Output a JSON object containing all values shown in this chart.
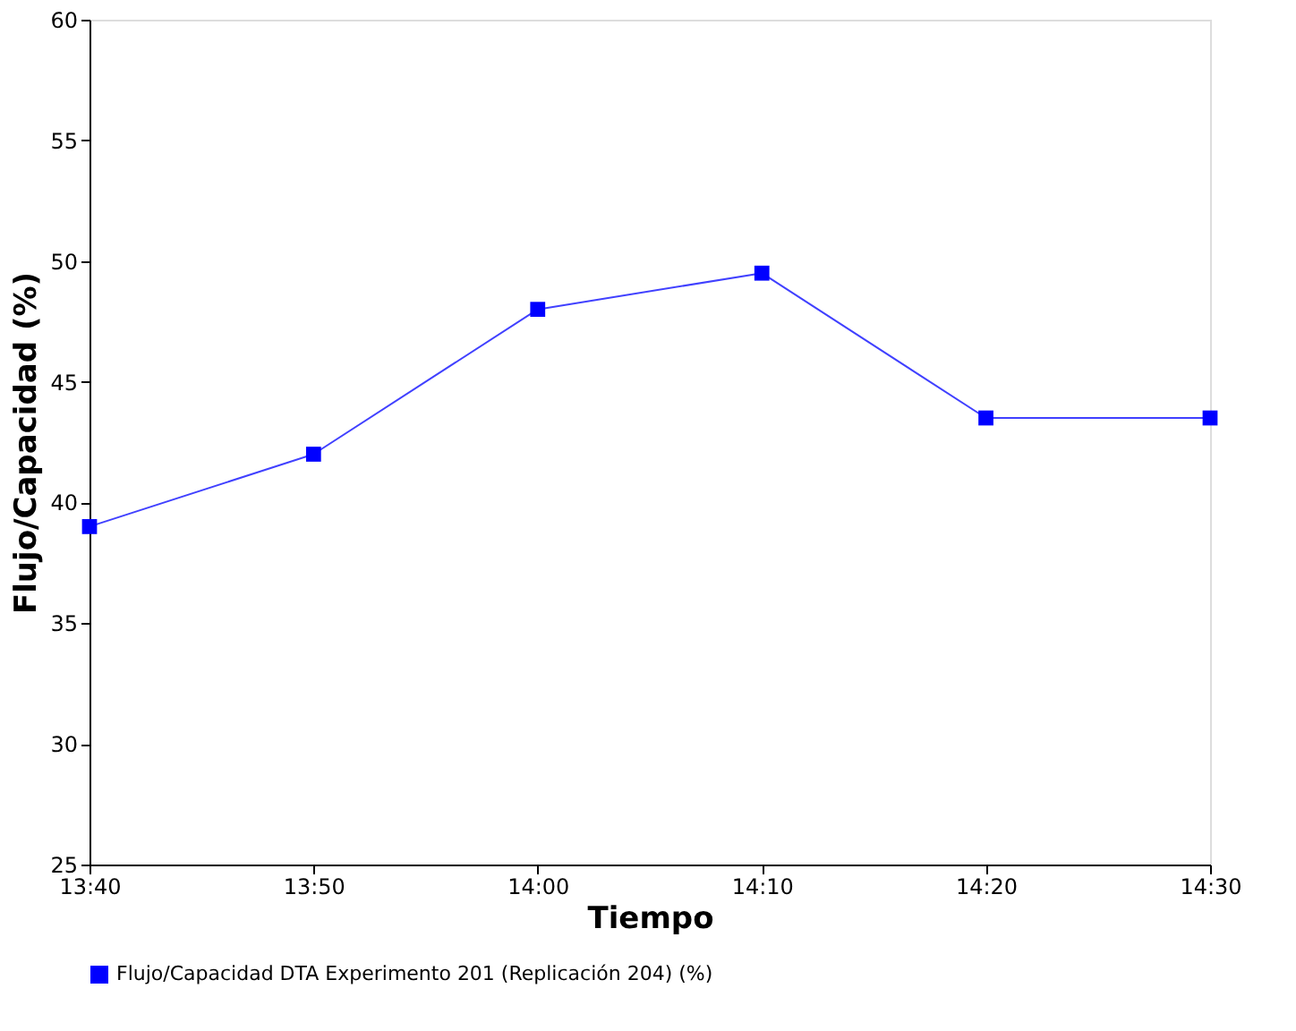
{
  "chart_data": {
    "type": "line",
    "xlabel": "Tiempo",
    "ylabel": "Flujo/Capacidad (%)",
    "x": [
      13.6667,
      13.8333,
      14.0,
      14.1667,
      14.3333,
      14.5
    ],
    "series": [
      {
        "name": "Flujo/Capacidad DTA Experimento 201 (Replicación 204) (%)",
        "color": "#0000ff",
        "values": [
          39,
          42,
          48,
          49.5,
          43.5,
          43.5
        ]
      }
    ],
    "xlim": [
      13.6667,
      14.5
    ],
    "xticks": [
      {
        "value": 13.6667,
        "label": "13:40"
      },
      {
        "value": 13.8333,
        "label": "13:50"
      },
      {
        "value": 14.0,
        "label": "14:00"
      },
      {
        "value": 14.1667,
        "label": "14:10"
      },
      {
        "value": 14.3333,
        "label": "14:20"
      },
      {
        "value": 14.5,
        "label": "14:30"
      }
    ],
    "ylim": [
      25,
      60
    ],
    "yticks": [
      25,
      30,
      35,
      40,
      45,
      50,
      55,
      60
    ],
    "grid": false,
    "legend": "bottom",
    "marker": "square",
    "line_style": "solid"
  }
}
